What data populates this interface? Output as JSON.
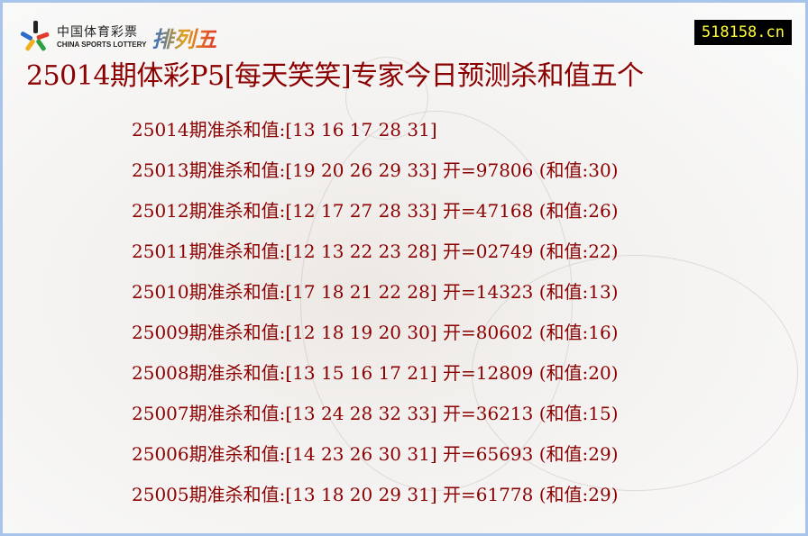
{
  "logo": {
    "cn": "中国体育彩票",
    "en": "CHINA SPORTS LOTTERY",
    "product": "排列五"
  },
  "site_badge": "518158.cn",
  "title": "25014期体彩P5[每天笑笑]专家今日预测杀和值五个",
  "colors": {
    "text": "#8b0000",
    "badge_bg": "#000000",
    "badge_text": "#ffff33",
    "frame": "#a9c4ea"
  },
  "rows": [
    {
      "text": "25014期准杀和值:[13 16 17 28 31]"
    },
    {
      "text": "25013期准杀和值:[19 20 26 29 33] 开=97806 (和值:30)"
    },
    {
      "text": "25012期准杀和值:[12 17 27 28 33] 开=47168 (和值:26)"
    },
    {
      "text": "25011期准杀和值:[12 13 22 23 28] 开=02749 (和值:22)"
    },
    {
      "text": "25010期准杀和值:[17 18 21 22 28] 开=14323 (和值:13)"
    },
    {
      "text": "25009期准杀和值:[12 18 19 20 30] 开=80602 (和值:16)"
    },
    {
      "text": "25008期准杀和值:[13 15 16 17 21] 开=12809 (和值:20)"
    },
    {
      "text": "25007期准杀和值:[13 24 28 32 33] 开=36213 (和值:15)"
    },
    {
      "text": "25006期准杀和值:[14 23 26 30 31] 开=65693 (和值:29)"
    },
    {
      "text": "25005期准杀和值:[13 18 20 29 31] 开=61778 (和值:29)"
    }
  ]
}
